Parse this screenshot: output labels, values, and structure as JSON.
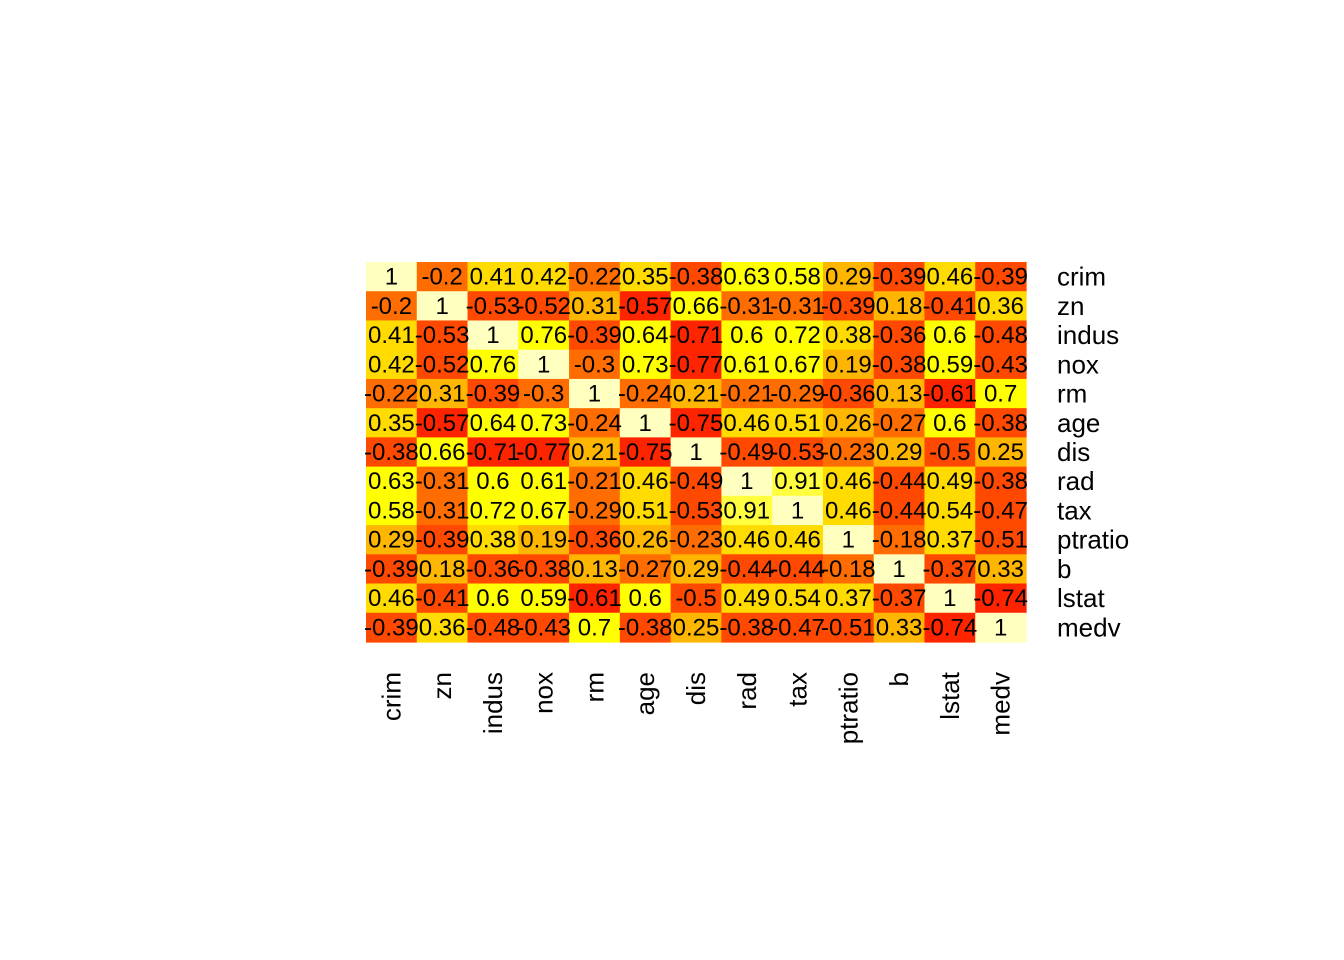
{
  "chart_data": {
    "type": "heatmap",
    "title": "",
    "xlabel": "",
    "ylabel": "",
    "row_labels": [
      "crim",
      "zn",
      "indus",
      "nox",
      "rm",
      "age",
      "dis",
      "rad",
      "tax",
      "ptratio",
      "b",
      "lstat",
      "medv"
    ],
    "col_labels": [
      "crim",
      "zn",
      "indus",
      "nox",
      "rm",
      "age",
      "dis",
      "rad",
      "tax",
      "ptratio",
      "b",
      "lstat",
      "medv"
    ],
    "values": [
      [
        1,
        -0.2,
        0.41,
        0.42,
        -0.22,
        0.35,
        -0.38,
        0.63,
        0.58,
        0.29,
        -0.39,
        0.46,
        -0.39
      ],
      [
        -0.2,
        1,
        -0.53,
        -0.52,
        0.31,
        -0.57,
        0.66,
        -0.31,
        -0.31,
        -0.39,
        0.18,
        -0.41,
        0.36
      ],
      [
        0.41,
        -0.53,
        1,
        0.76,
        -0.39,
        0.64,
        -0.71,
        0.6,
        0.72,
        0.38,
        -0.36,
        0.6,
        -0.48
      ],
      [
        0.42,
        -0.52,
        0.76,
        1,
        -0.3,
        0.73,
        -0.77,
        0.61,
        0.67,
        0.19,
        -0.38,
        0.59,
        -0.43
      ],
      [
        -0.22,
        0.31,
        -0.39,
        -0.3,
        1,
        -0.24,
        0.21,
        -0.21,
        -0.29,
        -0.36,
        0.13,
        -0.61,
        0.7
      ],
      [
        0.35,
        -0.57,
        0.64,
        0.73,
        -0.24,
        1,
        -0.75,
        0.46,
        0.51,
        0.26,
        -0.27,
        0.6,
        -0.38
      ],
      [
        -0.38,
        0.66,
        -0.71,
        -0.77,
        0.21,
        -0.75,
        1,
        -0.49,
        -0.53,
        -0.23,
        0.29,
        -0.5,
        0.25
      ],
      [
        0.63,
        -0.31,
        0.6,
        0.61,
        -0.21,
        0.46,
        -0.49,
        1,
        0.91,
        0.46,
        -0.44,
        0.49,
        -0.38
      ],
      [
        0.58,
        -0.31,
        0.72,
        0.67,
        -0.29,
        0.51,
        -0.53,
        0.91,
        1,
        0.46,
        -0.44,
        0.54,
        -0.47
      ],
      [
        0.29,
        -0.39,
        0.38,
        0.19,
        -0.36,
        0.26,
        -0.23,
        0.46,
        0.46,
        1,
        -0.18,
        0.37,
        -0.51
      ],
      [
        -0.39,
        0.18,
        -0.36,
        -0.38,
        0.13,
        -0.27,
        0.29,
        -0.44,
        -0.44,
        -0.18,
        1,
        -0.37,
        0.33
      ],
      [
        0.46,
        -0.41,
        0.6,
        0.59,
        -0.61,
        0.6,
        -0.5,
        0.49,
        0.54,
        0.37,
        -0.37,
        1,
        -0.74
      ],
      [
        -0.39,
        0.36,
        -0.48,
        -0.43,
        0.7,
        -0.38,
        0.25,
        -0.38,
        -0.47,
        -0.51,
        0.33,
        -0.74,
        1
      ]
    ],
    "value_range": [
      -1,
      1
    ],
    "color_scale": "heat",
    "grid": false,
    "legend": "none"
  },
  "colors": {
    "heat": [
      "#FF0000",
      "#FF2400",
      "#FF4900",
      "#FF6D00",
      "#FF9200",
      "#FFB600",
      "#FFDB00",
      "#FFFF00",
      "#FFFF40",
      "#FFFFBF"
    ]
  }
}
